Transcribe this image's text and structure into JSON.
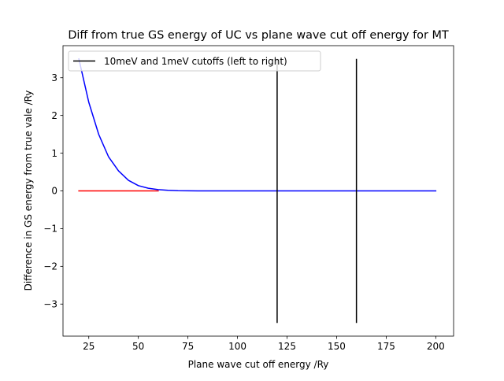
{
  "chart_data": {
    "type": "line",
    "title": "Diff from true GS energy of UC vs plane wave cut off energy for MT",
    "xlabel": "Plane wave cut off energy /Ry",
    "ylabel": "Difference in GS energy from true vale /Ry",
    "xlim": [
      12.0,
      209.0
    ],
    "ylim": [
      -3.85,
      3.85
    ],
    "xticks": [
      25,
      50,
      75,
      100,
      125,
      150,
      175,
      200
    ],
    "xtick_labels": [
      "25",
      "50",
      "75",
      "100",
      "125",
      "150",
      "175",
      "200"
    ],
    "yticks": [
      -3,
      -2,
      -1,
      0,
      1,
      2,
      3
    ],
    "ytick_labels": [
      "−3",
      "−2",
      "−1",
      "0",
      "1",
      "2",
      "3"
    ],
    "grid": false,
    "legend": {
      "position": "top-left",
      "entries": [
        {
          "label": "10meV and 1meV cutoffs (left to right)",
          "color": "#000000"
        }
      ]
    },
    "series": [
      {
        "color": "#0000ff",
        "x": [
          20,
          25,
          30,
          35,
          40,
          45,
          50,
          55,
          60,
          65,
          70,
          75,
          80,
          90,
          100,
          110,
          120,
          130,
          140,
          150,
          160,
          170,
          180,
          190,
          200
        ],
        "y": [
          3.5,
          2.35,
          1.5,
          0.9,
          0.53,
          0.28,
          0.14,
          0.07,
          0.035,
          0.015,
          0.006,
          0.003,
          0.001,
          0.0,
          0.0,
          0.0,
          0.0,
          0.0,
          0.0,
          0.0,
          0.0,
          0.0,
          0.0,
          0.0,
          0.0
        ]
      },
      {
        "color": "#ff0000",
        "x": [
          20,
          60
        ],
        "y": [
          0,
          0
        ]
      }
    ],
    "vlines": [
      {
        "x": 120,
        "ymin": -3.5,
        "ymax": 3.5,
        "color": "#000000"
      },
      {
        "x": 160,
        "ymin": -3.5,
        "ymax": 3.5,
        "color": "#000000"
      }
    ]
  }
}
